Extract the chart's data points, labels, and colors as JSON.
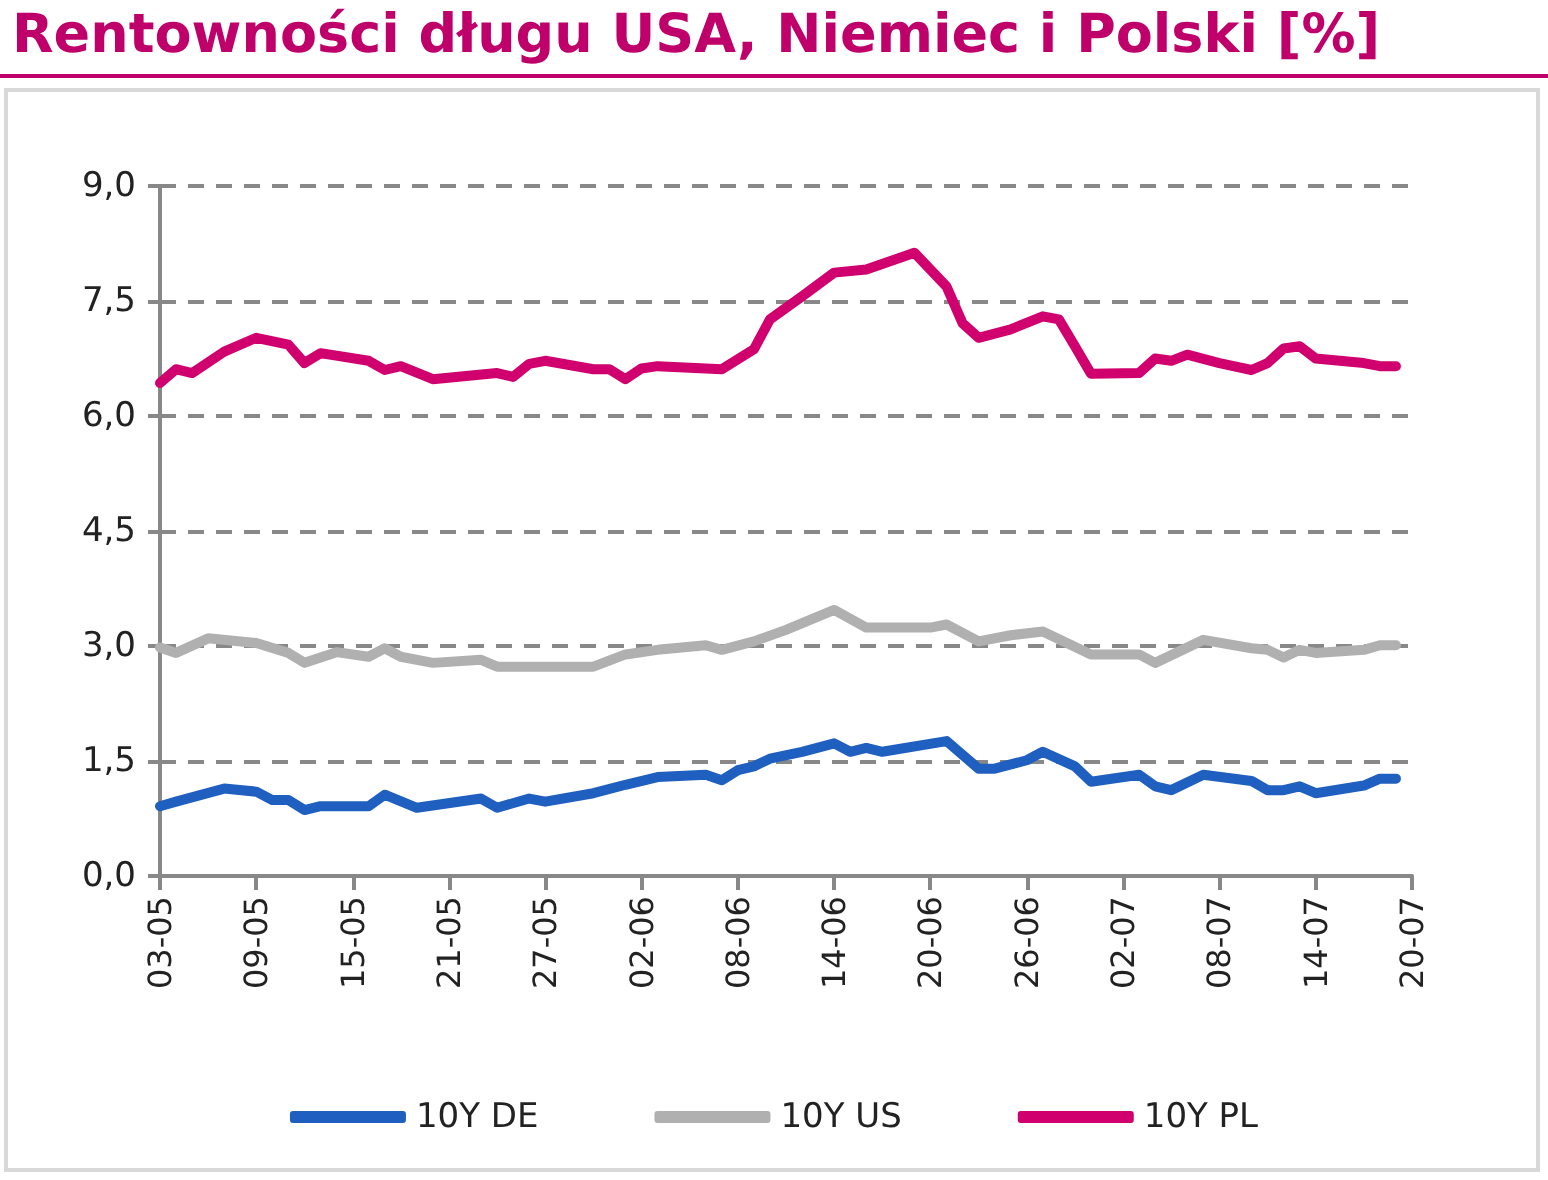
{
  "chart_data": {
    "type": "line",
    "title": "Rentowności długu USA, Niemiec i Polski [%]",
    "xlim": [
      "--05-03",
      "--07-20"
    ],
    "xticks": [
      {
        "value": "--05-03",
        "label": "03-05"
      },
      {
        "value": "--05-09",
        "label": "09-05"
      },
      {
        "value": "--05-15",
        "label": "15-05"
      },
      {
        "value": "--05-21",
        "label": "21-05"
      },
      {
        "value": "--05-27",
        "label": "27-05"
      },
      {
        "value": "--06-02",
        "label": "02-06"
      },
      {
        "value": "--06-08",
        "label": "08-06"
      },
      {
        "value": "--06-14",
        "label": "14-06"
      },
      {
        "value": "--06-20",
        "label": "20-06"
      },
      {
        "value": "--06-26",
        "label": "26-06"
      },
      {
        "value": "--07-02",
        "label": "02-07"
      },
      {
        "value": "--07-08",
        "label": "08-07"
      },
      {
        "value": "--07-14",
        "label": "14-07"
      },
      {
        "value": "--07-20",
        "label": "20-07"
      }
    ],
    "ylim": [
      0,
      9
    ],
    "yticks": [
      {
        "value": 0,
        "label": "0,0"
      },
      {
        "value": 1.5,
        "label": "1,5"
      },
      {
        "value": 3,
        "label": "3,0"
      },
      {
        "value": 4.5,
        "label": "4,5"
      },
      {
        "value": 6,
        "label": "6,0"
      },
      {
        "value": 7.5,
        "label": "7,5"
      },
      {
        "value": 9,
        "label": "9,0"
      }
    ],
    "grid": "y",
    "legend": "bottom",
    "marker": "none",
    "line_style": "solid",
    "series": [
      {
        "name": "10Y DE",
        "color": "#1f5fbf",
        "x": [
          "--05-03",
          "--05-04",
          "--05-07",
          "--05-09",
          "--05-10",
          "--05-11",
          "--05-12",
          "--05-13",
          "--05-16",
          "--05-17",
          "--05-19",
          "--05-23",
          "--05-24",
          "--05-26",
          "--05-27",
          "--05-30",
          "--06-01",
          "--06-03",
          "--06-06",
          "--06-07",
          "--06-08",
          "--06-09",
          "--06-10",
          "--06-12",
          "--06-14",
          "--06-15",
          "--06-16",
          "--06-17",
          "--06-21",
          "--06-23",
          "--06-24",
          "--06-26",
          "--06-27",
          "--06-29",
          "--06-30",
          "--07-03",
          "--07-04",
          "--07-05",
          "--07-07",
          "--07-10",
          "--07-11",
          "--07-12",
          "--07-13",
          "--07-14",
          "--07-17",
          "--07-18",
          "--07-19"
        ],
        "values": [
          0.91,
          0.97,
          1.14,
          1.1,
          0.99,
          0.99,
          0.86,
          0.91,
          0.91,
          1.06,
          0.89,
          1.01,
          0.89,
          1.01,
          0.97,
          1.08,
          1.19,
          1.29,
          1.32,
          1.25,
          1.38,
          1.43,
          1.53,
          1.62,
          1.73,
          1.62,
          1.67,
          1.62,
          1.76,
          1.4,
          1.4,
          1.51,
          1.62,
          1.43,
          1.23,
          1.32,
          1.17,
          1.12,
          1.32,
          1.24,
          1.12,
          1.12,
          1.17,
          1.08,
          1.18,
          1.27,
          1.27
        ]
      },
      {
        "name": "10Y US",
        "color": "#b0b0b0",
        "x": [
          "--05-03",
          "--05-04",
          "--05-06",
          "--05-09",
          "--05-11",
          "--05-12",
          "--05-14",
          "--05-16",
          "--05-17",
          "--05-18",
          "--05-20",
          "--05-23",
          "--05-24",
          "--05-30",
          "--06-01",
          "--06-03",
          "--06-06",
          "--06-07",
          "--06-09",
          "--06-11",
          "--06-14",
          "--06-16",
          "--06-20",
          "--06-21",
          "--06-23",
          "--06-25",
          "--06-27",
          "--06-30",
          "--07-03",
          "--07-04",
          "--07-07",
          "--07-10",
          "--07-11",
          "--07-12",
          "--07-13",
          "--07-14",
          "--07-17",
          "--07-18",
          "--07-19"
        ],
        "values": [
          2.98,
          2.91,
          3.1,
          3.04,
          2.91,
          2.78,
          2.92,
          2.86,
          2.97,
          2.86,
          2.78,
          2.82,
          2.73,
          2.73,
          2.89,
          2.95,
          3.01,
          2.95,
          3.06,
          3.21,
          3.47,
          3.24,
          3.24,
          3.28,
          3.06,
          3.14,
          3.19,
          2.89,
          2.89,
          2.78,
          3.08,
          2.97,
          2.95,
          2.85,
          2.95,
          2.91,
          2.95,
          3.01,
          3.01
        ]
      },
      {
        "name": "10Y PL",
        "color": "#d0006f",
        "x": [
          "--05-03",
          "--05-04",
          "--05-05",
          "--05-07",
          "--05-09",
          "--05-11",
          "--05-12",
          "--05-13",
          "--05-16",
          "--05-17",
          "--05-18",
          "--05-20",
          "--05-24",
          "--05-25",
          "--05-26",
          "--05-27",
          "--05-30",
          "--05-31",
          "--06-01",
          "--06-02",
          "--06-03",
          "--06-07",
          "--06-09",
          "--06-10",
          "--06-12",
          "--06-14",
          "--06-16",
          "--06-19",
          "--06-21",
          "--06-22",
          "--06-23",
          "--06-25",
          "--06-27",
          "--06-28",
          "--06-29",
          "--06-30",
          "--07-03",
          "--07-04",
          "--07-05",
          "--07-06",
          "--07-08",
          "--07-10",
          "--07-11",
          "--07-12",
          "--07-13",
          "--07-14",
          "--07-17",
          "--07-18",
          "--07-19"
        ],
        "values": [
          6.43,
          6.61,
          6.56,
          6.84,
          7.02,
          6.93,
          6.69,
          6.82,
          6.72,
          6.6,
          6.65,
          6.48,
          6.56,
          6.51,
          6.68,
          6.72,
          6.61,
          6.61,
          6.48,
          6.62,
          6.65,
          6.61,
          6.87,
          7.26,
          7.56,
          7.87,
          7.91,
          8.13,
          7.69,
          7.21,
          7.02,
          7.13,
          7.3,
          7.26,
          6.91,
          6.55,
          6.56,
          6.75,
          6.72,
          6.8,
          6.69,
          6.6,
          6.69,
          6.88,
          6.91,
          6.75,
          6.69,
          6.65,
          6.65
        ]
      }
    ]
  }
}
